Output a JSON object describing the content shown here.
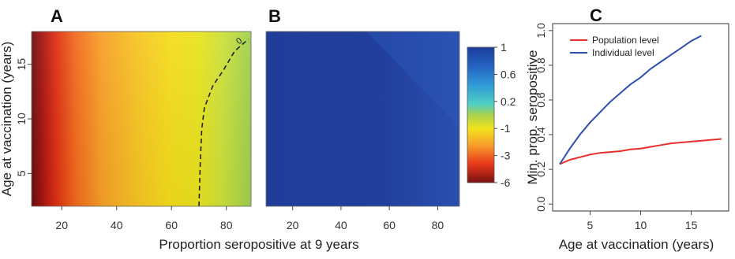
{
  "chart_data": [
    {
      "panel": "A",
      "type": "heatmap",
      "xlabel": "Proportion seropositive at 9 years",
      "ylabel": "Age at vaccination (years)",
      "xlim": [
        9,
        89
      ],
      "ylim": [
        2,
        18
      ],
      "x_ticks": [
        20,
        40,
        60,
        80
      ],
      "y_ticks": [
        5,
        10,
        15
      ],
      "contour": {
        "label": "0",
        "style": "dashed",
        "points": [
          [
            70,
            2
          ],
          [
            70.5,
            6
          ],
          [
            71,
            9
          ],
          [
            72,
            11
          ],
          [
            75,
            13
          ],
          [
            79,
            14.5
          ],
          [
            83,
            16.2
          ],
          [
            88,
            17.3
          ]
        ]
      }
    },
    {
      "panel": "B",
      "type": "heatmap",
      "xlabel": "Proportion seropositive at 9 years",
      "xlim": [
        9,
        89
      ],
      "ylim": [
        2,
        18
      ],
      "x_ticks": [
        20,
        40,
        60,
        80
      ]
    },
    {
      "type": "colorbar",
      "tick_labels": [
        "1",
        "0.6",
        "0.2",
        "-1",
        "-3",
        "-6"
      ],
      "colors": [
        "#1a3c9a",
        "#2f7bd4",
        "#3cc8d8",
        "#a8d24c",
        "#f2e21d",
        "#f7a02a",
        "#e83a1c",
        "#7a1010"
      ]
    },
    {
      "panel": "C",
      "type": "line",
      "xlabel": "Age at vaccination (years)",
      "ylabel": "Min. prop. seropositive",
      "xlim": [
        1.3,
        18.7
      ],
      "ylim": [
        -0.04,
        1.04
      ],
      "x_ticks": [
        5,
        10,
        15
      ],
      "y_ticks": [
        0.0,
        0.2,
        0.4,
        0.6,
        0.8,
        1.0
      ],
      "y_tick_labels": [
        "0.0",
        "0.2",
        "0.4",
        "0.6",
        "0.8",
        "1.0"
      ],
      "legend": "top-left",
      "series": [
        {
          "name": "Population level",
          "color": "#e8302a",
          "x": [
            2,
            3,
            4,
            5,
            6,
            7,
            8,
            9,
            10,
            11,
            12,
            13,
            14,
            15,
            16,
            17,
            18
          ],
          "y": [
            0.23,
            0.255,
            0.27,
            0.285,
            0.295,
            0.3,
            0.305,
            0.315,
            0.32,
            0.33,
            0.34,
            0.35,
            0.355,
            0.36,
            0.365,
            0.37,
            0.375
          ]
        },
        {
          "name": "Individual level",
          "color": "#2e4fb0",
          "x": [
            2,
            3,
            4,
            5,
            6,
            7,
            8,
            9,
            10,
            11,
            12,
            13,
            14,
            15,
            16
          ],
          "y": [
            0.23,
            0.32,
            0.4,
            0.47,
            0.53,
            0.59,
            0.64,
            0.69,
            0.73,
            0.78,
            0.82,
            0.86,
            0.9,
            0.94,
            0.97
          ]
        }
      ]
    }
  ]
}
